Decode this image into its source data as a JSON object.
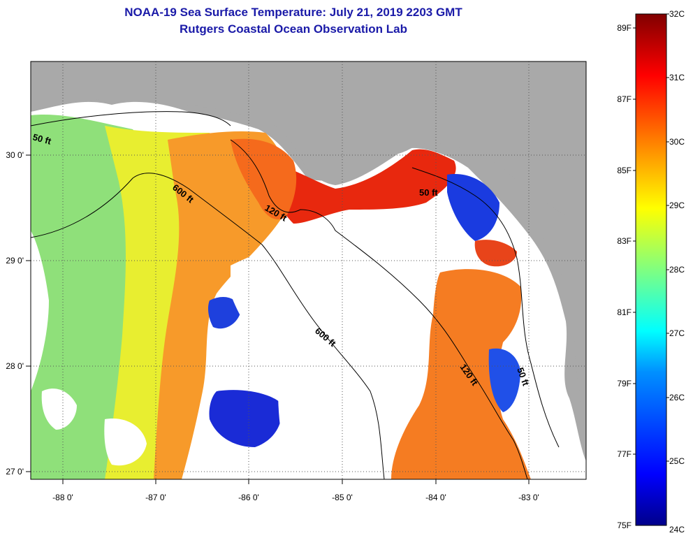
{
  "title": {
    "line1": "NOAA-19 Sea Surface Temperature:  July 21, 2019 2203 GMT",
    "line2": "Rutgers Coastal Ocean Observation Lab"
  },
  "axes": {
    "lon_labels": [
      "-88 0'",
      "-87 0'",
      "-86 0'",
      "-85 0'",
      "-84 0'",
      "-83 0'"
    ],
    "lat_labels": [
      "30 0'",
      "29 0'",
      "28 0'",
      "27 0'"
    ]
  },
  "contours": [
    {
      "label": "50 ft"
    },
    {
      "label": "600 ft"
    },
    {
      "label": "120 ft"
    },
    {
      "label": "50 ft"
    },
    {
      "label": "600 ft"
    },
    {
      "label": "120 ft"
    },
    {
      "label": "50 ft"
    }
  ],
  "colorbar": {
    "celsius": [
      "32C",
      "31C",
      "30C",
      "29C",
      "28C",
      "27C",
      "26C",
      "25C",
      "24C"
    ],
    "fahrenheit": [
      "89F",
      "87F",
      "85F",
      "83F",
      "81F",
      "79F",
      "77F",
      "75F"
    ],
    "colors": [
      "#00008a",
      "#0000ff",
      "#0080ff",
      "#00ffff",
      "#80ff80",
      "#ffff00",
      "#ff8000",
      "#ff0000",
      "#800000"
    ]
  },
  "colors": {
    "land": "#a9a9a9",
    "cloud": "#ffffff",
    "title": "#1a1aa8"
  }
}
